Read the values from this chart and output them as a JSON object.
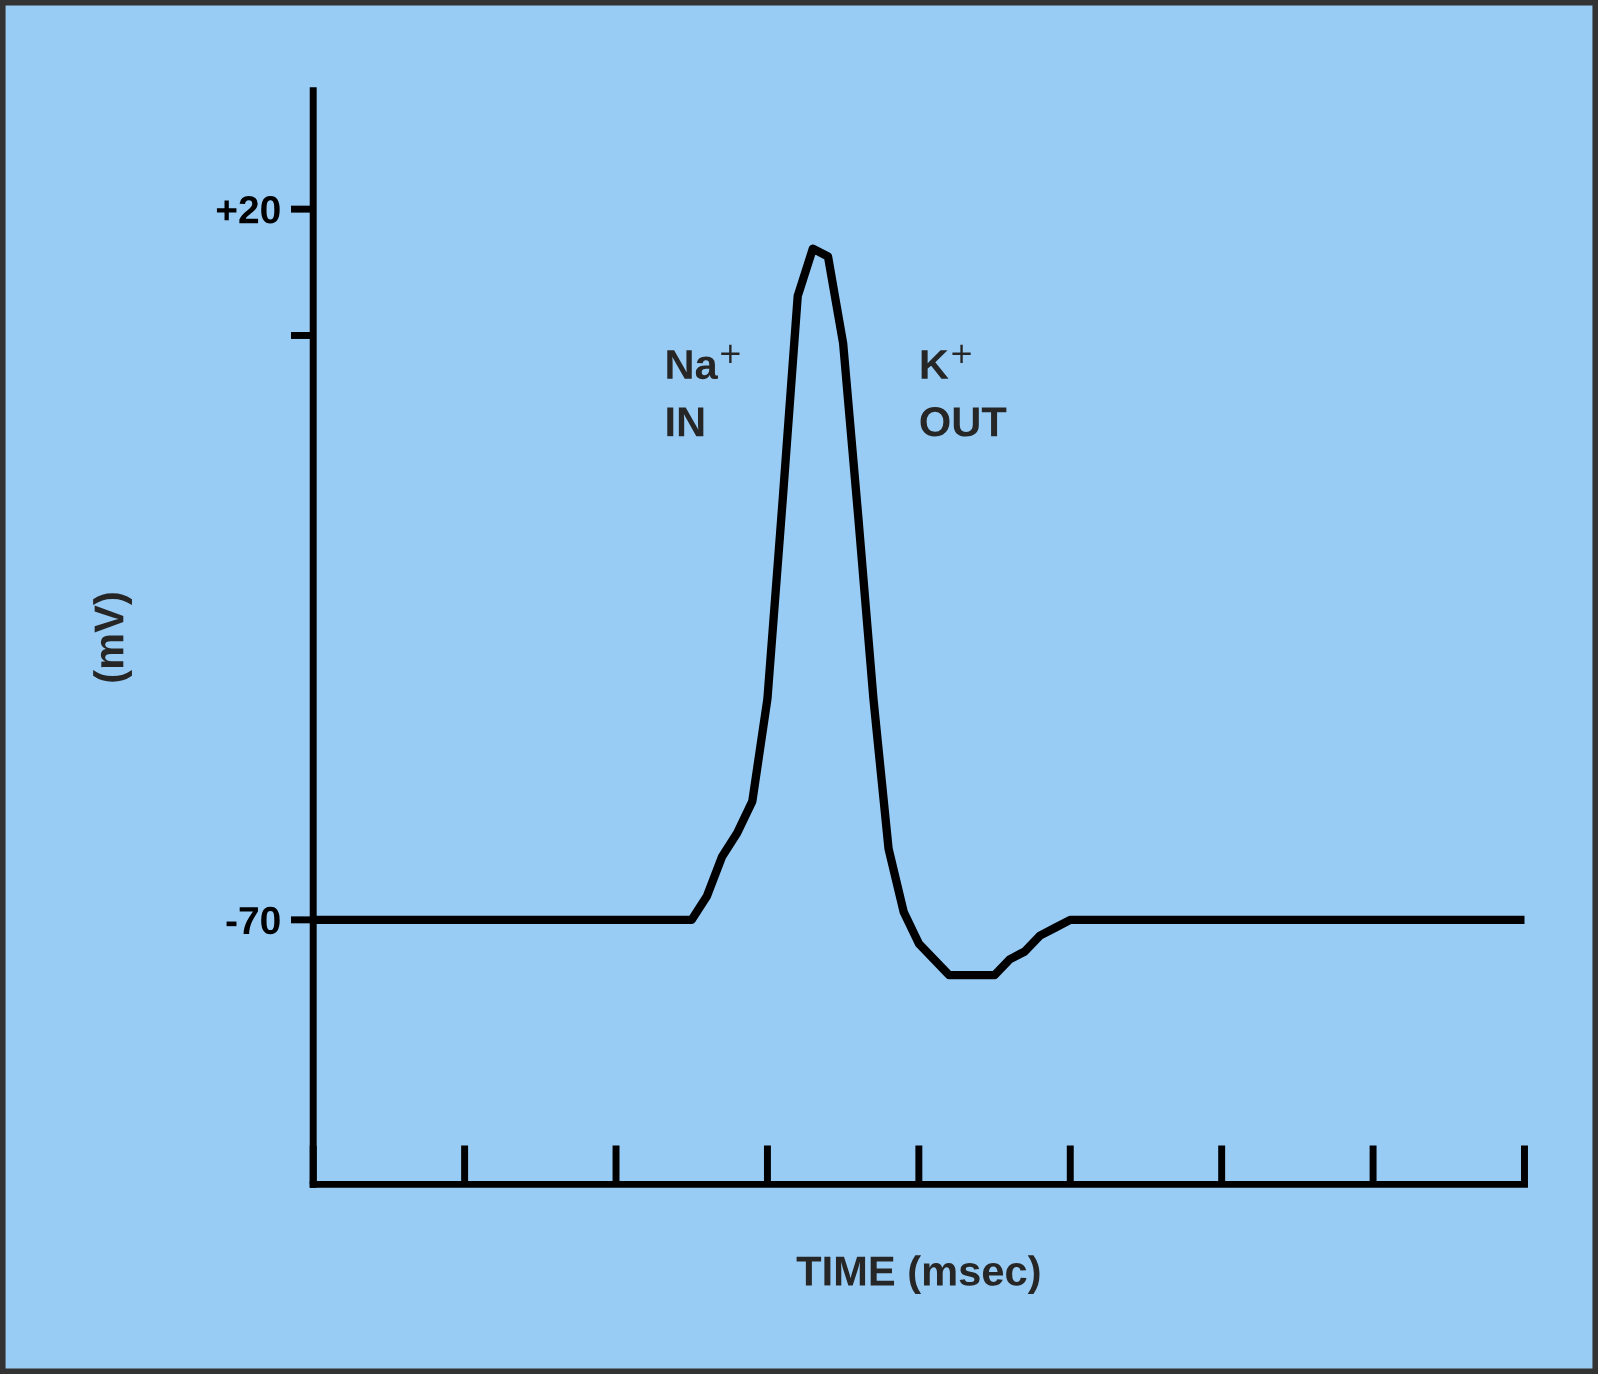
{
  "chart_data": {
    "type": "line",
    "xlabel": "TIME (msec)",
    "ylabel": "(mV)",
    "color": "#000000",
    "categories": [
      null,
      null,
      null,
      null,
      null,
      null,
      null,
      null,
      null,
      null,
      null,
      null,
      null,
      null,
      null,
      null,
      null,
      null,
      null,
      null,
      null,
      null,
      null,
      null,
      null,
      null,
      null,
      null,
      null,
      null,
      null,
      null,
      null,
      null,
      null,
      null,
      null,
      null,
      null,
      null,
      null,
      null,
      null,
      null,
      null,
      null,
      null,
      null,
      null,
      null,
      null,
      null,
      null,
      null,
      null,
      null,
      null,
      null,
      null,
      null,
      null,
      null,
      null,
      null,
      null,
      null,
      null,
      null,
      null,
      null,
      null,
      null,
      null,
      null,
      null,
      null,
      null,
      null,
      null,
      null,
      null
    ],
    "values": [
      -70,
      -70,
      -70,
      -70,
      -70,
      -70,
      -70,
      -70,
      -70,
      -70,
      -70,
      -70,
      -70,
      -70,
      -70,
      -70,
      -70,
      -70,
      -70,
      -70,
      -70,
      -70,
      -70,
      -70,
      -70,
      -70,
      -67,
      -62,
      -59,
      -55,
      -42,
      -17,
      9,
      15,
      14,
      3,
      -19,
      -42,
      -61,
      -69,
      -73,
      -75,
      -77,
      -77,
      -77,
      -77,
      -75,
      -74,
      -72,
      -71,
      -70,
      -70,
      -70,
      -70,
      -70,
      -70,
      -70,
      -70,
      -70,
      -70,
      -70,
      -70,
      -70,
      -70,
      -70,
      -70,
      -70,
      -70,
      -70,
      -70,
      -70,
      -70,
      -70,
      -70,
      -70,
      -70,
      -70,
      -70,
      -70,
      -70,
      -70
    ],
    "ylim": [
      -103.5,
      35
    ],
    "yticks": [
      {
        "value": 20,
        "label": "+20"
      },
      {
        "value": 4,
        "label": null
      },
      {
        "value": -70,
        "label": "-70"
      }
    ],
    "tick_labels": "y",
    "legend": false,
    "marker": "none",
    "line_style": "solid",
    "annotations": [
      "Na$^{+}$\nIN",
      "K$^{+}$\nOUT"
    ]
  }
}
